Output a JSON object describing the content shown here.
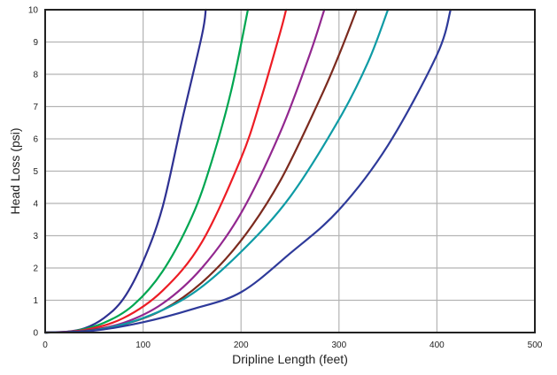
{
  "chart_data": {
    "type": "line",
    "xlabel": "Dripline Length (feet)",
    "ylabel": "Head Loss (psi)",
    "xlim": [
      0,
      500
    ],
    "ylim": [
      0,
      10
    ],
    "x_ticks": [
      "0",
      "100",
      "200",
      "300",
      "400",
      "500"
    ],
    "y_ticks": [
      "0",
      "1",
      "2",
      "3",
      "4",
      "5",
      "6",
      "7",
      "8",
      "9",
      "10"
    ],
    "grid": "both",
    "legend": "none",
    "series": [
      {
        "color": "#2e3192",
        "x": [
          0,
          20,
          40,
          60,
          80,
          100,
          120,
          140,
          160,
          164
        ],
        "y": [
          0,
          0.02,
          0.13,
          0.45,
          1.05,
          2.2,
          3.9,
          6.6,
          9.2,
          10
        ]
      },
      {
        "color": "#00a651",
        "x": [
          0,
          30,
          60,
          90,
          120,
          150,
          170,
          190,
          207
        ],
        "y": [
          0,
          0.05,
          0.3,
          0.85,
          1.9,
          3.6,
          5.3,
          7.5,
          10
        ]
      },
      {
        "color": "#ed1c24",
        "x": [
          0,
          40,
          80,
          120,
          160,
          200,
          220,
          240,
          246
        ],
        "y": [
          0,
          0.08,
          0.45,
          1.3,
          2.8,
          5.4,
          7.2,
          9.3,
          10
        ]
      },
      {
        "color": "#92278f",
        "x": [
          0,
          40,
          80,
          120,
          160,
          200,
          240,
          270,
          285
        ],
        "y": [
          0,
          0.06,
          0.3,
          0.9,
          2.0,
          3.7,
          6.2,
          8.6,
          10
        ]
      },
      {
        "color": "#7b2a1e",
        "x": [
          0,
          40,
          80,
          120,
          160,
          200,
          240,
          280,
          300,
          318
        ],
        "y": [
          0,
          0.05,
          0.25,
          0.7,
          1.55,
          2.85,
          4.7,
          7.2,
          8.6,
          10
        ]
      },
      {
        "color": "#0e9ba5",
        "x": [
          0,
          50,
          100,
          150,
          200,
          250,
          300,
          330,
          350
        ],
        "y": [
          0,
          0.07,
          0.45,
          1.2,
          2.5,
          4.2,
          6.6,
          8.4,
          10
        ]
      },
      {
        "color": "#2e3a9a",
        "x": [
          0,
          50,
          100,
          150,
          200,
          250,
          300,
          350,
          400,
          414
        ],
        "y": [
          0,
          0.06,
          0.32,
          0.72,
          1.25,
          2.45,
          3.8,
          5.8,
          8.6,
          10
        ]
      }
    ]
  }
}
